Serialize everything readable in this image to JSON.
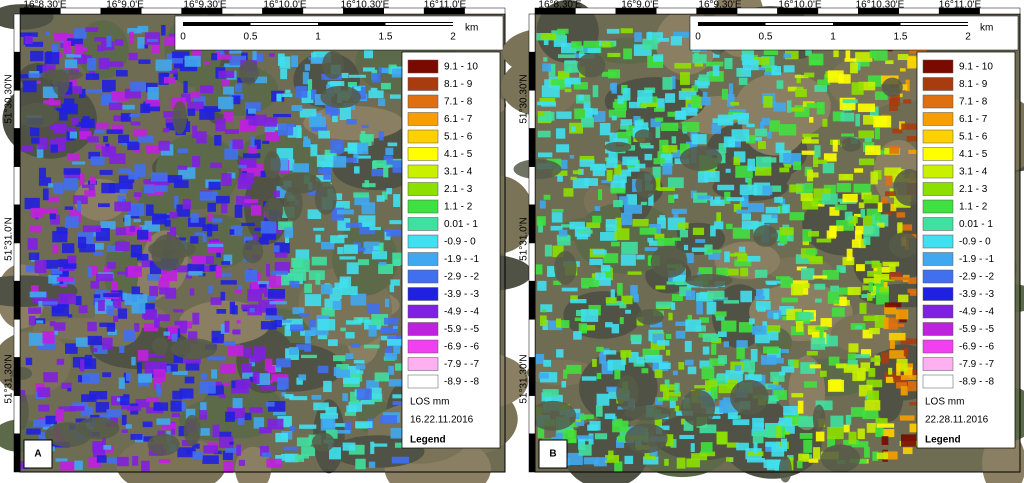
{
  "panels": [
    {
      "letter": "A",
      "date": "16.22.11.2016",
      "lon_labels": [
        "16°8.30'E",
        "16°9.0'E",
        "16°9.30'E",
        "16°10.0'E",
        "16°10.30'E",
        "16°11.0'E"
      ],
      "lat_labels": [
        "51°30.30'N",
        "51°31.0'N",
        "51°31.30'N"
      ]
    },
    {
      "letter": "B",
      "date": "22.28.11.2016",
      "lon_labels": [
        "16°8.30'E",
        "16°9.0'E",
        "16°9.30'E",
        "16°10.0'E",
        "16°10.30'E",
        "16°11.0'E"
      ],
      "lat_labels": [
        "51°30.30'N",
        "51°31.0'N",
        "51°31.30'N"
      ]
    }
  ],
  "scale": {
    "ticks": [
      "0",
      "0.5",
      "1",
      "1.5",
      "2"
    ],
    "unit": "km"
  },
  "legend": {
    "title": "Legend",
    "unit_label": "LOS mm",
    "classes": [
      {
        "label": "9.1 - 10",
        "color": "#7a0a00"
      },
      {
        "label": "8.1 - 9",
        "color": "#a83c0f"
      },
      {
        "label": "7.1 - 8",
        "color": "#e0700f"
      },
      {
        "label": "6.1 - 7",
        "color": "#f5a000"
      },
      {
        "label": "5.1 - 6",
        "color": "#ffd000"
      },
      {
        "label": "4.1 - 5",
        "color": "#ffff00"
      },
      {
        "label": "3.1 - 4",
        "color": "#c8f000"
      },
      {
        "label": "2.1 - 3",
        "color": "#8ce000"
      },
      {
        "label": "1.1 - 2",
        "color": "#40e040"
      },
      {
        "label": "0.01 - 1",
        "color": "#40e0a0"
      },
      {
        "label": "-0.9 - 0",
        "color": "#40e0f0"
      },
      {
        "label": "-1.9 - -1",
        "color": "#40a8f0"
      },
      {
        "label": "-2.9 - -2",
        "color": "#4070f0"
      },
      {
        "label": "-3.9 - -3",
        "color": "#2020e0"
      },
      {
        "label": "-4.9 - -4",
        "color": "#8020e0"
      },
      {
        "label": "-5.9 - -5",
        "color": "#c020e0"
      },
      {
        "label": "-6.9 - -6",
        "color": "#f040f0"
      },
      {
        "label": "-7.9 - -7",
        "color": "#ffb0f0"
      },
      {
        "label": "-8.9 - -8",
        "color": "#ffffff"
      }
    ]
  }
}
